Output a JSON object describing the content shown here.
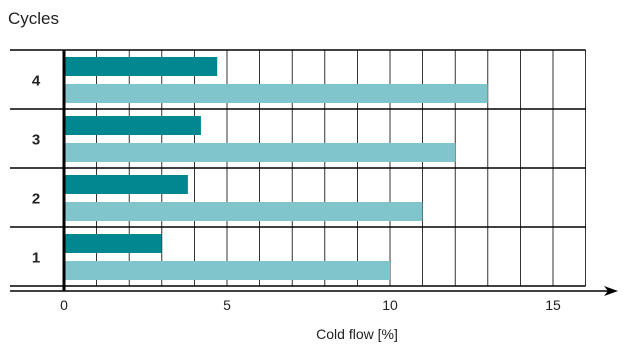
{
  "chart_data": {
    "type": "bar",
    "orientation": "horizontal",
    "title": "Cycles",
    "xlabel": "Cold flow  [%]",
    "categories": [
      "4",
      "3",
      "2",
      "1"
    ],
    "series": [
      {
        "values": [
          4.7,
          4.2,
          3.8,
          3.0
        ],
        "color": "#00878f"
      },
      {
        "values": [
          13.0,
          12.0,
          11.0,
          10.0
        ],
        "color": "#7fc5cb"
      }
    ],
    "xlim": [
      0,
      17
    ],
    "xticks": [
      0,
      5,
      10,
      15
    ],
    "grid": true
  }
}
